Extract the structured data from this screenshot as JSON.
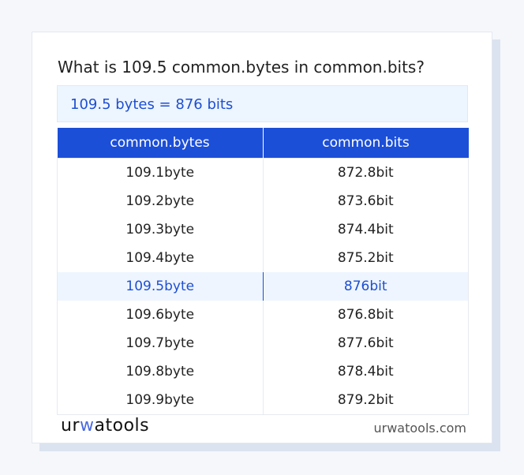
{
  "title": "What is 109.5 common.bytes in common.bits?",
  "result": "109.5 bytes = 876 bits",
  "table": {
    "headers": [
      "common.bytes",
      "common.bits"
    ],
    "rows": [
      [
        "109.1byte",
        "872.8bit"
      ],
      [
        "109.2byte",
        "873.6bit"
      ],
      [
        "109.3byte",
        "874.4bit"
      ],
      [
        "109.4byte",
        "875.2bit"
      ],
      [
        "109.5byte",
        "876bit"
      ],
      [
        "109.6byte",
        "876.8bit"
      ],
      [
        "109.7byte",
        "877.6bit"
      ],
      [
        "109.8byte",
        "878.4bit"
      ],
      [
        "109.9byte",
        "879.2bit"
      ]
    ],
    "highlighted_row": 4
  },
  "footer": {
    "logo": "urwatools",
    "logo_parts": [
      "ur",
      "w",
      "atools"
    ],
    "domain": "urwatools.com"
  },
  "colors": {
    "accent": "#1c4fd8",
    "highlight_bg": "#eef5ff"
  }
}
